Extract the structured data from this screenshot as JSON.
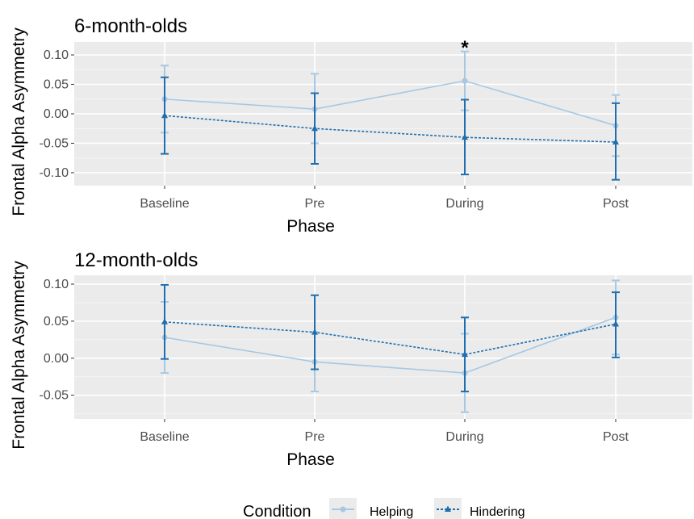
{
  "chart_data": [
    {
      "type": "line",
      "title": "6-month-olds",
      "xlabel": "Phase",
      "ylabel": "Frontal Alpha Asymmetry",
      "categories": [
        "Baseline",
        "Pre",
        "During",
        "Post"
      ],
      "ylim": [
        -0.122,
        0.122
      ],
      "yticks": [
        0.1,
        0.05,
        0.0,
        -0.05,
        -0.1
      ],
      "ytick_labels": [
        "0.10",
        "0.05",
        "0.00",
        "-0.05",
        "-0.10"
      ],
      "grid": true,
      "annotations": [
        {
          "text": "*",
          "category": "During"
        }
      ],
      "series": [
        {
          "name": "Helping",
          "color": "#a6c8e3",
          "line_style": "solid",
          "marker": "circle",
          "values": [
            0.025,
            0.008,
            0.056,
            -0.02
          ],
          "error_low": [
            -0.032,
            -0.05,
            0.006,
            -0.072
          ],
          "error_high": [
            0.082,
            0.068,
            0.106,
            0.032
          ]
        },
        {
          "name": "Hindering",
          "color": "#1f6fb0",
          "line_style": "dotted",
          "marker": "triangle",
          "values": [
            -0.003,
            -0.025,
            -0.04,
            -0.048
          ],
          "error_low": [
            -0.068,
            -0.085,
            -0.103,
            -0.112
          ],
          "error_high": [
            0.062,
            0.035,
            0.024,
            0.018
          ]
        }
      ]
    },
    {
      "type": "line",
      "title": "12-month-olds",
      "xlabel": "Phase",
      "ylabel": "Frontal Alpha Asymmetry",
      "categories": [
        "Baseline",
        "Pre",
        "During",
        "Post"
      ],
      "ylim": [
        -0.082,
        0.112
      ],
      "yticks": [
        0.1,
        0.05,
        0.0,
        -0.05
      ],
      "ytick_labels": [
        "0.10",
        "0.05",
        "0.00",
        "-0.05"
      ],
      "grid": true,
      "annotations": [],
      "series": [
        {
          "name": "Helping",
          "color": "#a6c8e3",
          "line_style": "solid",
          "marker": "circle",
          "values": [
            0.028,
            -0.005,
            -0.02,
            0.055
          ],
          "error_low": [
            -0.02,
            -0.045,
            -0.073,
            0.005
          ],
          "error_high": [
            0.076,
            0.035,
            0.033,
            0.105
          ]
        },
        {
          "name": "Hindering",
          "color": "#1f6fb0",
          "line_style": "dotted",
          "marker": "triangle",
          "values": [
            0.049,
            0.035,
            0.005,
            0.046
          ],
          "error_low": [
            -0.001,
            -0.015,
            -0.045,
            0.001
          ],
          "error_high": [
            0.099,
            0.085,
            0.055,
            0.089
          ]
        }
      ]
    }
  ],
  "legend": {
    "title": "Condition",
    "position": "bottom",
    "items": [
      {
        "label": "Helping",
        "color": "#a6c8e3",
        "marker": "circle",
        "line_style": "solid"
      },
      {
        "label": "Hindering",
        "color": "#1f6fb0",
        "marker": "triangle",
        "line_style": "dotted"
      }
    ]
  },
  "colors": {
    "panel_background": "#ebebeb",
    "gridline_major": "#ffffff",
    "gridline_minor": "#f5f5f5",
    "tick_label": "#4d4d4d"
  }
}
